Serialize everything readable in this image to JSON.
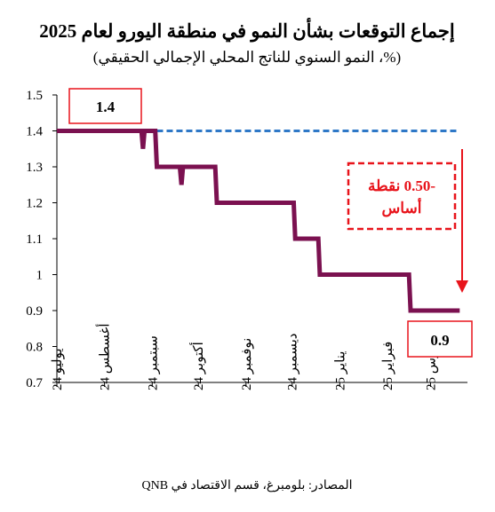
{
  "chart_data": {
    "type": "line",
    "title": "إجماع التوقعات بشأن النمو في منطقة اليورو لعام 2025",
    "subtitle": "(%، النمو السنوي للناتج المحلي الإجمالي الحقيقي)",
    "source": "المصادر: بلومبرغ، قسم الاقتصاد في QNB",
    "xlabel": "",
    "ylabel": "",
    "ylim": [
      0.7,
      1.5
    ],
    "yticks": [
      "0.7",
      "0.8",
      "0.9",
      "1",
      "1.1",
      "1.2",
      "1.3",
      "1.4",
      "1.5"
    ],
    "xticks": [
      "يوليو 24",
      "أغسطس 24",
      "سبتمبر 24",
      "أكتوبر 24",
      "نوفمبر 24",
      "ديسمبر 24",
      "يناير 25",
      "فبراير 25",
      "مارس 25"
    ],
    "grid": false,
    "colors": {
      "series": "#7b1150",
      "reference": "#2e78c7",
      "annotation": "#e8141b"
    },
    "series": [
      {
        "values": [
          {
            "x": "2024-07-01",
            "y": 1.4
          },
          {
            "x": "2024-08-25",
            "y": 1.4
          },
          {
            "x": "2024-08-26",
            "y": 1.35
          },
          {
            "x": "2024-08-27",
            "y": 1.4
          },
          {
            "x": "2024-09-03",
            "y": 1.4
          },
          {
            "x": "2024-09-04",
            "y": 1.3
          },
          {
            "x": "2024-09-19",
            "y": 1.3
          },
          {
            "x": "2024-09-20",
            "y": 1.25
          },
          {
            "x": "2024-09-21",
            "y": 1.3
          },
          {
            "x": "2024-10-12",
            "y": 1.3
          },
          {
            "x": "2024-10-13",
            "y": 1.2
          },
          {
            "x": "2024-12-02",
            "y": 1.2
          },
          {
            "x": "2024-12-03",
            "y": 1.1
          },
          {
            "x": "2024-12-18",
            "y": 1.1
          },
          {
            "x": "2024-12-19",
            "y": 1.0
          },
          {
            "x": "2025-02-15",
            "y": 1.0
          },
          {
            "x": "2025-02-16",
            "y": 0.9
          },
          {
            "x": "2025-03-20",
            "y": 0.9
          }
        ]
      }
    ],
    "reference_line": {
      "y": 1.4,
      "x_start": "2024-09-04",
      "x_end": "2025-03-20",
      "style": "dashed"
    },
    "annotations": [
      {
        "text": "1.4",
        "y": 1.4
      },
      {
        "text": "0.9",
        "y": 0.9
      },
      {
        "lines": [
          "-0.50 نقطة",
          "أساس"
        ]
      }
    ]
  }
}
